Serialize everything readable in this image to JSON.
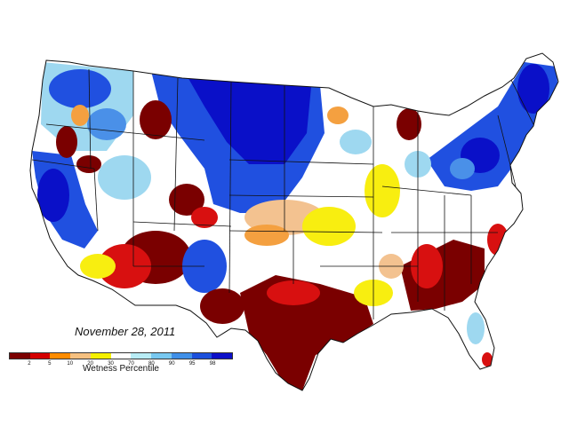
{
  "date_label": "November 28, 2011",
  "legend": {
    "title": "Wetness Percentile",
    "ticks": [
      "2",
      "5",
      "10",
      "20",
      "30",
      "70",
      "80",
      "90",
      "95",
      "98"
    ],
    "colors": [
      "#7b0000",
      "#d40000",
      "#ff8c00",
      "#f5c080",
      "#f5f000",
      "#ffffff",
      "#b8ecf5",
      "#78c8f0",
      "#4090e8",
      "#1c50dc",
      "#0c10c8"
    ]
  },
  "palette": {
    "blue_dark": "#0a10c8",
    "blue": "#2050e0",
    "blue_mid": "#4a90e8",
    "blue_light": "#9ed8f0",
    "white": "#ffffff",
    "yellow": "#f8ee10",
    "tan": "#f3c290",
    "orange": "#f4a040",
    "red": "#d81010",
    "maroon": "#7a0000",
    "border": "#111111"
  }
}
